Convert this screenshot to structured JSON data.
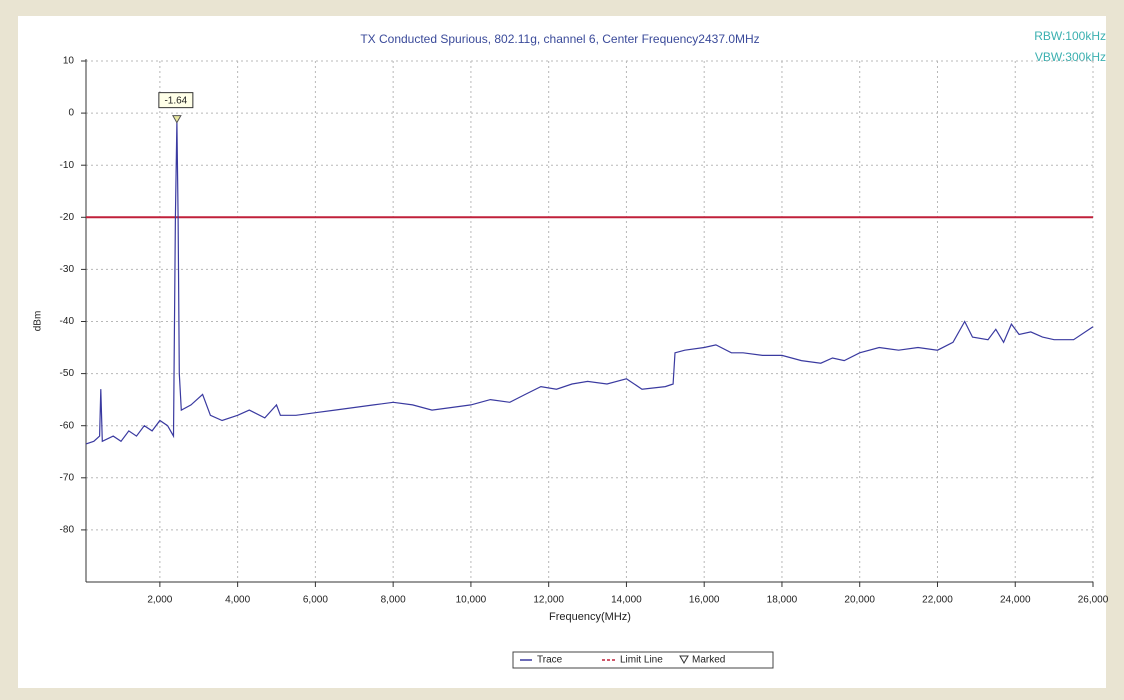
{
  "chart_data": {
    "type": "line",
    "title": "TX Conducted Spurious, 802.11g, channel 6, Center Frequency2437.0MHz",
    "annotations": [
      "RBW:100kHz",
      "VBW:300kHz"
    ],
    "x_label": "Frequency(MHz)",
    "y_label": "dBm",
    "x": [
      100,
      300,
      450,
      480,
      520,
      800,
      1000,
      1200,
      1400,
      1600,
      1800,
      2000,
      2200,
      2350,
      2400,
      2437,
      2470,
      2500,
      2550,
      2800,
      3100,
      3300,
      3600,
      4000,
      4300,
      4700,
      5000,
      5100,
      5500,
      6000,
      6500,
      7000,
      7500,
      8000,
      8500,
      9000,
      9500,
      10000,
      10500,
      11000,
      11400,
      11800,
      12200,
      12600,
      13000,
      13500,
      14000,
      14400,
      15000,
      15200,
      15250,
      15500,
      16000,
      16300,
      16700,
      17000,
      17500,
      18000,
      18500,
      19000,
      19300,
      19600,
      20000,
      20500,
      21000,
      21500,
      22000,
      22400,
      22700,
      22900,
      23300,
      23500,
      23700,
      23900,
      24100,
      24400,
      24700,
      25000,
      25500,
      26000
    ],
    "series": [
      {
        "name": "Trace",
        "color": "#3a3aa0",
        "values": [
          -63.5,
          -63,
          -62,
          -53,
          -63,
          -62,
          -63,
          -61,
          -62,
          -60,
          -61,
          -59,
          -60,
          -62,
          -20,
          -1.64,
          -20,
          -50,
          -57,
          -56,
          -54,
          -58,
          -59,
          -58,
          -57,
          -58.5,
          -56,
          -58,
          -58,
          -57.5,
          -57,
          -56.5,
          -56,
          -55.5,
          -56,
          -57,
          -56.5,
          -56,
          -55,
          -55.5,
          -54,
          -52.5,
          -53,
          -52,
          -51.5,
          -52,
          -51,
          -53,
          -52.5,
          -52,
          -46,
          -45.5,
          -45,
          -44.5,
          -46,
          -46,
          -46.5,
          -46.5,
          -47.5,
          -48,
          -47,
          -47.5,
          -46,
          -45,
          -45.5,
          -45,
          -45.5,
          -44,
          -40,
          -43,
          -43.5,
          -41.5,
          -44,
          -40.5,
          -42.5,
          -42,
          -43,
          -43.5,
          -43.5,
          -41
        ]
      }
    ],
    "limit_line": {
      "name": "Limit Line",
      "value": -20,
      "color": "#c0203a"
    },
    "marker": {
      "name": "Marked",
      "x": 2437,
      "value": -1.64
    },
    "xlim": [
      100,
      26000
    ],
    "ylim": [
      -90,
      10
    ],
    "xticks": [
      {
        "value": 2000,
        "label": "2,000"
      },
      {
        "value": 4000,
        "label": "4,000"
      },
      {
        "value": 6000,
        "label": "6,000"
      },
      {
        "value": 8000,
        "label": "8,000"
      },
      {
        "value": 10000,
        "label": "10,000"
      },
      {
        "value": 12000,
        "label": "12,000"
      },
      {
        "value": 14000,
        "label": "14,000"
      },
      {
        "value": 16000,
        "label": "16,000"
      },
      {
        "value": 18000,
        "label": "18,000"
      },
      {
        "value": 20000,
        "label": "20,000"
      },
      {
        "value": 22000,
        "label": "22,000"
      },
      {
        "value": 24000,
        "label": "24,000"
      },
      {
        "value": 26000,
        "label": "26,000"
      }
    ],
    "yticks": [
      10,
      0,
      -10,
      -20,
      -30,
      -40,
      -50,
      -60,
      -70,
      -80
    ],
    "grid": true,
    "legend": "bottom"
  }
}
